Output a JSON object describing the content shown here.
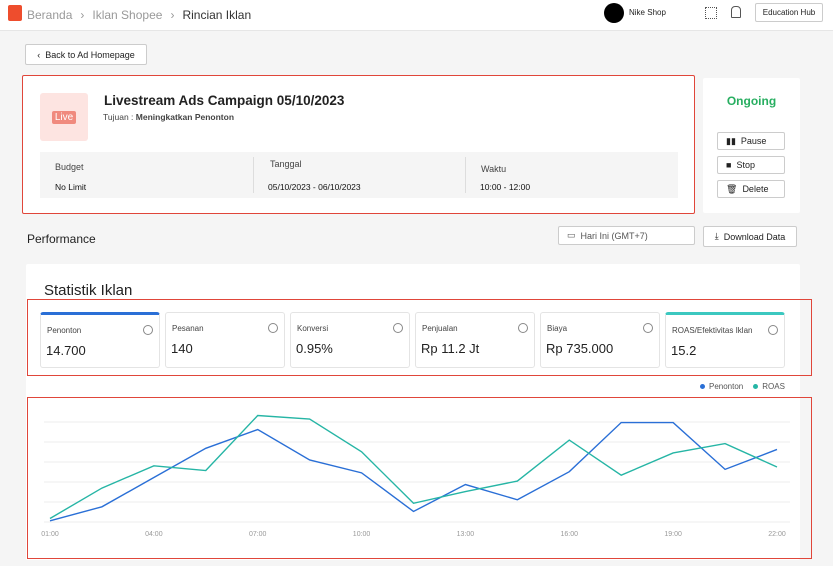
{
  "header": {
    "breadcrumbs": [
      "Beranda",
      "Iklan Shopee",
      "Rincian Iklan"
    ],
    "shop": "Nike Shop",
    "button": "Education Hub"
  },
  "back_button": "Back to Ad Homepage",
  "campaign": {
    "title": "Livestream Ads Campaign 05/10/2023",
    "icon_text": "Live",
    "goal_label": "Tujuan :",
    "goal": "Meningkatkan Penonton",
    "fields": [
      {
        "label": "Budget",
        "value": "No Limit"
      },
      {
        "label": "Tanggal",
        "value": "05/10/2023 - 06/10/2023"
      },
      {
        "label": "Waktu",
        "value": "10:00 - 12:00"
      }
    ]
  },
  "status": {
    "label": "Ongoing",
    "actions": [
      "Pause",
      "Stop",
      "Delete"
    ]
  },
  "performance": {
    "title": "Performance",
    "date_filter": "Hari Ini (GMT+7)",
    "download": "Download Data"
  },
  "stats": {
    "title": "Statistik Iklan",
    "metrics": [
      {
        "label": "Penonton",
        "value": "14.700"
      },
      {
        "label": "Pesanan",
        "value": "140"
      },
      {
        "label": "Konversi",
        "value": "0.95%"
      },
      {
        "label": "Penjualan",
        "value": "Rp 11.2 Jt"
      },
      {
        "label": "Biaya",
        "value": "Rp 735.000"
      },
      {
        "label": "ROAS/Efektivitas Iklan",
        "value": "15.2"
      }
    ]
  },
  "chart_data": {
    "type": "line",
    "categories": [
      "01:00",
      null,
      "04:00",
      null,
      "07:00",
      null,
      "10:00",
      null,
      "13:00",
      null,
      "16:00",
      null,
      "19:00",
      null,
      "22:00"
    ],
    "ylim": [
      0,
      100
    ],
    "series": [
      {
        "name": "Penonton",
        "color": "#2a6fd6",
        "values": [
          1,
          13,
          38,
          63,
          79,
          53,
          42,
          9,
          32,
          19,
          43,
          85,
          85,
          45,
          62
        ]
      },
      {
        "name": "ROAS",
        "color": "#26b5a5",
        "values": [
          3,
          29,
          48,
          44,
          91,
          88,
          60,
          16,
          26,
          35,
          70,
          40,
          59,
          67,
          47
        ]
      }
    ]
  }
}
